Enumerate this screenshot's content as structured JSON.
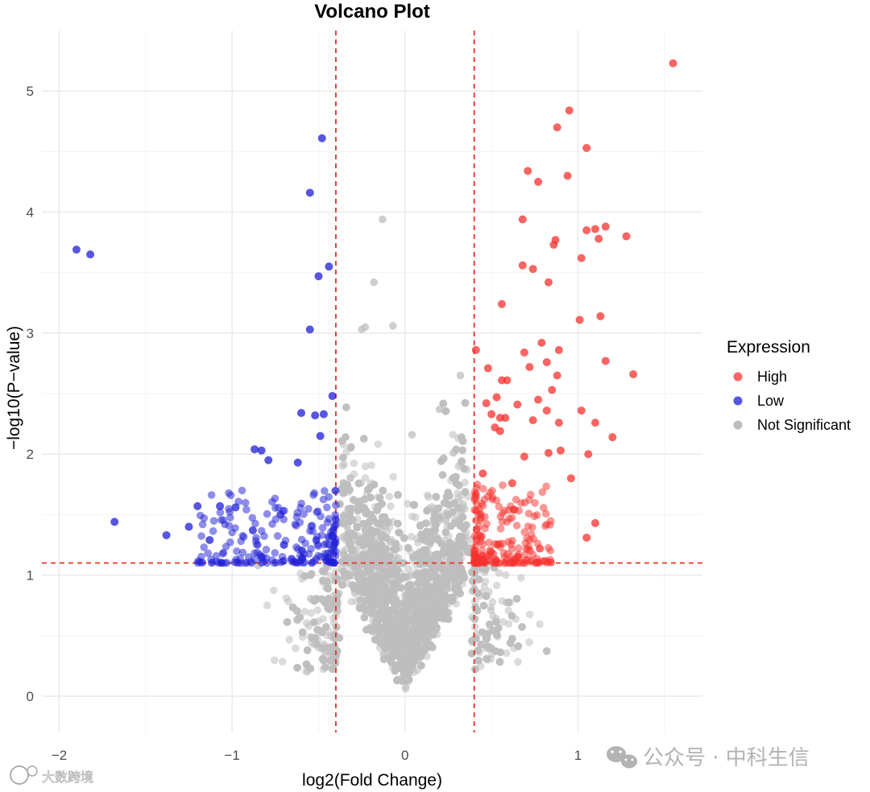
{
  "chart_data": {
    "type": "scatter",
    "title": "Volcano Plot",
    "xlabel": "log2(Fold Change)",
    "ylabel": "−log10(P−value)",
    "xlim": [
      -2.1,
      1.72
    ],
    "ylim": [
      -0.3,
      5.5
    ],
    "x_ticks": [
      -2,
      -1,
      0,
      1
    ],
    "y_ticks": [
      0,
      1,
      2,
      3,
      4,
      5
    ],
    "x_tick_labels": [
      "−2",
      "−1",
      "0",
      "1"
    ],
    "y_tick_labels": [
      "0",
      "1",
      "2",
      "3",
      "4",
      "5"
    ],
    "grid": true,
    "thresholds": {
      "log2fc": [
        -0.4,
        0.4
      ],
      "neg_log10_p": 1.1,
      "color": "#e8302a"
    },
    "legend": {
      "title": "Expression",
      "position": "right",
      "entries": [
        {
          "label": "High",
          "color": "#f5312d"
        },
        {
          "label": "Low",
          "color": "#1e1ed6"
        },
        {
          "label": "Not Significant",
          "color": "#bdbdbd"
        }
      ]
    },
    "series": [
      {
        "name": "High",
        "color": "#f5312d",
        "x": [
          1.55,
          0.95,
          0.88,
          1.05,
          0.71,
          0.94,
          0.77,
          0.68,
          1.28,
          1.16,
          1.05,
          1.1,
          1.12,
          0.87,
          0.86,
          1.02,
          0.68,
          0.74,
          0.83,
          0.56,
          1.13,
          1.01,
          0.41,
          0.79,
          0.89,
          0.69,
          0.72,
          1.16,
          0.48,
          1.32,
          0.82,
          0.56,
          0.59,
          0.53,
          0.88,
          0.85,
          0.77,
          0.47,
          0.65,
          0.82,
          1.02,
          0.5,
          0.55,
          0.74,
          0.55,
          0.89,
          1.1,
          1.2,
          0.58,
          0.52,
          0.83,
          0.69,
          0.9,
          1.06,
          0.96,
          1.1,
          1.05,
          0.45,
          0.62,
          0.78
        ],
        "y": [
          5.23,
          4.84,
          4.7,
          4.53,
          4.34,
          4.3,
          4.25,
          3.94,
          3.8,
          3.88,
          3.85,
          3.86,
          3.78,
          3.77,
          3.73,
          3.62,
          3.56,
          3.53,
          3.42,
          3.24,
          3.14,
          3.11,
          2.86,
          2.92,
          2.86,
          2.84,
          2.72,
          2.77,
          2.71,
          2.66,
          2.76,
          2.61,
          2.61,
          2.47,
          2.65,
          2.53,
          2.45,
          2.42,
          2.41,
          2.36,
          2.36,
          2.33,
          2.3,
          2.28,
          2.19,
          2.26,
          2.26,
          2.14,
          2.3,
          2.22,
          2.01,
          1.98,
          2.03,
          2.0,
          1.8,
          1.43,
          1.31,
          1.84,
          1.76,
          1.22
        ]
      },
      {
        "name": "Low",
        "color": "#1e1ed6",
        "x": [
          -1.9,
          -1.82,
          -0.48,
          -0.55,
          -0.44,
          -0.5,
          -0.55,
          -0.42,
          -0.6,
          -0.52,
          -0.47,
          -0.87,
          -0.83,
          -0.79,
          -0.62,
          -0.49,
          -1.68,
          -1.2,
          -1.07,
          -0.98,
          -0.72,
          -1.25,
          -0.88,
          -1.38,
          -1.13,
          -0.7
        ],
        "y": [
          3.69,
          3.65,
          4.61,
          4.16,
          3.55,
          3.47,
          3.03,
          2.48,
          2.34,
          2.32,
          2.33,
          2.04,
          2.03,
          1.95,
          1.93,
          2.15,
          1.44,
          1.57,
          1.57,
          1.56,
          1.5,
          1.4,
          1.37,
          1.33,
          1.29,
          1.25
        ]
      }
    ],
    "watermarks": [
      "公众号 · 中科生信",
      "大数跨境"
    ]
  }
}
